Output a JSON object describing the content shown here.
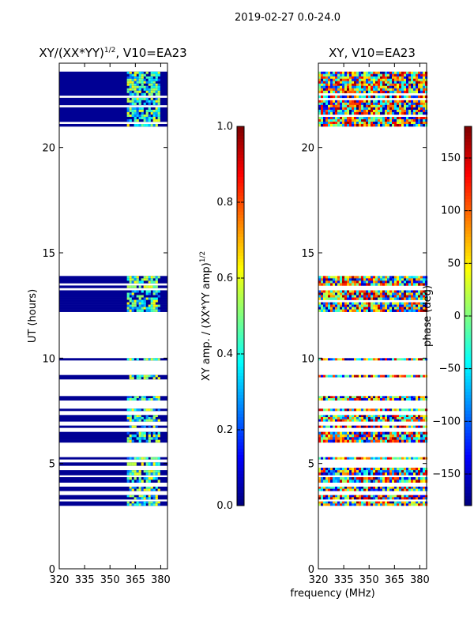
{
  "suptitle": "2019-02-27 0.0-24.0",
  "shared_xlabel": "frequency (MHz)",
  "chart_data": [
    {
      "type": "heatmap",
      "title_main": "XY/(XX*YY)",
      "title_exp": "1/2",
      "title_suffix": ", V10=EA23",
      "xlabel": "",
      "ylabel": "UT (hours)",
      "xlim": [
        320,
        384
      ],
      "ylim": [
        0,
        24
      ],
      "xticks": [
        320,
        335,
        350,
        365,
        380
      ],
      "yticks": [
        0,
        5,
        10,
        15,
        20
      ],
      "colormap": "jet",
      "vmin": 0.0,
      "vmax": 1.0,
      "low_value_fill": 0.02,
      "bright_freq_band": [
        360,
        380
      ],
      "colorbar": {
        "label_main": "XY amp. / (XX*YY amp)",
        "label_exp": "1/2",
        "ticks": [
          "0.0",
          "0.2",
          "0.4",
          "0.6",
          "0.8",
          "1.0"
        ],
        "tick_values": [
          0.0,
          0.2,
          0.4,
          0.6,
          0.8,
          1.0
        ]
      },
      "data_time_bands": [
        [
          21.0,
          23.6
        ],
        [
          12.2,
          13.9
        ],
        [
          9.9,
          10.0
        ],
        [
          9.0,
          9.2
        ],
        [
          8.0,
          8.2
        ],
        [
          7.5,
          7.6
        ],
        [
          7.0,
          7.3
        ],
        [
          6.7,
          6.8
        ],
        [
          6.0,
          6.5
        ],
        [
          5.2,
          5.3
        ],
        [
          4.9,
          5.05
        ],
        [
          4.45,
          4.8
        ],
        [
          4.1,
          4.35
        ],
        [
          3.7,
          3.9
        ],
        [
          3.3,
          3.5
        ],
        [
          3.0,
          3.2
        ]
      ]
    },
    {
      "type": "heatmap",
      "title": "XY, V10=EA23",
      "xlabel": "frequency (MHz)",
      "ylabel": "",
      "xlim": [
        320,
        384
      ],
      "ylim": [
        0,
        24
      ],
      "xticks": [
        320,
        335,
        350,
        365,
        380
      ],
      "yticks": [
        0,
        5,
        10,
        15,
        20
      ],
      "colormap": "jet",
      "vmin": -180,
      "vmax": 180,
      "colorbar": {
        "label": "phase (deg)",
        "ticks": [
          "−150",
          "−100",
          "−50",
          "0",
          "50",
          "100",
          "150"
        ],
        "tick_values": [
          -150,
          -100,
          -50,
          0,
          50,
          100,
          150
        ]
      },
      "data_time_bands": [
        [
          21.0,
          23.6
        ],
        [
          12.2,
          13.9
        ],
        [
          9.9,
          10.0
        ],
        [
          9.0,
          9.2
        ],
        [
          8.0,
          8.2
        ],
        [
          7.5,
          7.6
        ],
        [
          7.0,
          7.3
        ],
        [
          6.7,
          6.8
        ],
        [
          6.0,
          6.5
        ],
        [
          5.2,
          5.3
        ],
        [
          4.9,
          5.05
        ],
        [
          4.45,
          4.8
        ],
        [
          4.1,
          4.35
        ],
        [
          3.7,
          3.9
        ],
        [
          3.3,
          3.5
        ],
        [
          3.0,
          3.2
        ]
      ]
    }
  ]
}
